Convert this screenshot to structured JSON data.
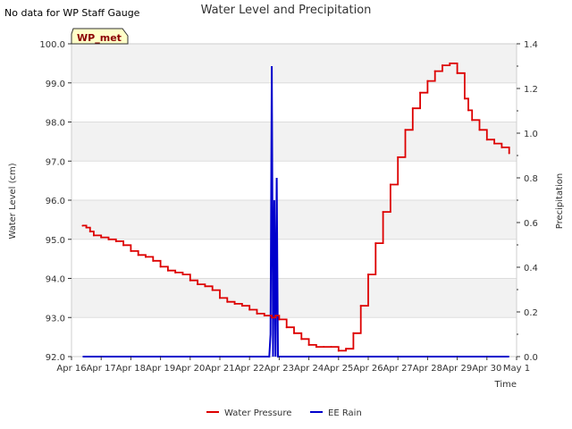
{
  "note": "No data for WP Staff Gauge",
  "chart_data": {
    "type": "line",
    "title": "Water Level and Precipitation",
    "xlabel": "Time",
    "ylabel": "Water Level (cm)",
    "y2label": "Precipitation",
    "ylim": [
      92.0,
      100.0
    ],
    "y2lim": [
      0.0,
      1.4
    ],
    "yticks": [
      "92.0",
      "93.0",
      "94.0",
      "95.0",
      "96.0",
      "97.0",
      "98.0",
      "99.0",
      "100.0"
    ],
    "y2ticks": [
      "0.0",
      "0.2",
      "0.4",
      "0.6",
      "0.8",
      "1.0",
      "1.2",
      "1.4"
    ],
    "xticks": [
      "Apr 16",
      "Apr 17",
      "Apr 18",
      "Apr 19",
      "Apr 20",
      "Apr 21",
      "Apr 22",
      "Apr 23",
      "Apr 24",
      "Apr 25",
      "Apr 26",
      "Apr 27",
      "Apr 28",
      "Apr 29",
      "Apr 30",
      "May 1"
    ],
    "xlim": [
      "2024-04-16",
      "2024-05-01"
    ],
    "grid": true,
    "legend_position": "bottom-center",
    "station_label": "WP_met",
    "series": [
      {
        "name": "Water Pressure",
        "color": "#dd0000",
        "axis": "left",
        "x": [
          "2024-04-16T09:00",
          "2024-04-16T12:00",
          "2024-04-16T15:00",
          "2024-04-16T18:00",
          "2024-04-17T00:00",
          "2024-04-17T06:00",
          "2024-04-17T12:00",
          "2024-04-17T18:00",
          "2024-04-18T00:00",
          "2024-04-18T06:00",
          "2024-04-18T12:00",
          "2024-04-18T18:00",
          "2024-04-19T00:00",
          "2024-04-19T06:00",
          "2024-04-19T12:00",
          "2024-04-19T18:00",
          "2024-04-20T00:00",
          "2024-04-20T06:00",
          "2024-04-20T12:00",
          "2024-04-20T18:00",
          "2024-04-21T00:00",
          "2024-04-21T06:00",
          "2024-04-21T12:00",
          "2024-04-21T18:00",
          "2024-04-22T00:00",
          "2024-04-22T06:00",
          "2024-04-22T12:00",
          "2024-04-22T18:00",
          "2024-04-22T21:00",
          "2024-04-23T00:00",
          "2024-04-23T06:00",
          "2024-04-23T12:00",
          "2024-04-23T18:00",
          "2024-04-24T00:00",
          "2024-04-24T06:00",
          "2024-04-24T12:00",
          "2024-04-24T18:00",
          "2024-04-25T00:00",
          "2024-04-25T06:00",
          "2024-04-25T12:00",
          "2024-04-25T18:00",
          "2024-04-26T00:00",
          "2024-04-26T06:00",
          "2024-04-26T12:00",
          "2024-04-26T18:00",
          "2024-04-27T00:00",
          "2024-04-27T06:00",
          "2024-04-27T12:00",
          "2024-04-27T18:00",
          "2024-04-28T00:00",
          "2024-04-28T06:00",
          "2024-04-28T12:00",
          "2024-04-28T18:00",
          "2024-04-28T22:00",
          "2024-04-29T00:00",
          "2024-04-29T06:00",
          "2024-04-29T09:00",
          "2024-04-29T12:00",
          "2024-04-29T18:00",
          "2024-04-30T00:00",
          "2024-04-30T06:00",
          "2024-04-30T12:00",
          "2024-04-30T18:00"
        ],
        "values": [
          95.35,
          95.3,
          95.2,
          95.1,
          95.05,
          95.0,
          94.95,
          94.85,
          94.7,
          94.6,
          94.55,
          94.45,
          94.3,
          94.2,
          94.15,
          94.1,
          93.95,
          93.85,
          93.8,
          93.7,
          93.5,
          93.4,
          93.35,
          93.3,
          93.2,
          93.1,
          93.05,
          93.0,
          93.05,
          92.95,
          92.75,
          92.6,
          92.45,
          92.3,
          92.25,
          92.25,
          92.25,
          92.15,
          92.2,
          92.6,
          93.3,
          94.1,
          94.9,
          95.7,
          96.4,
          97.1,
          97.8,
          98.35,
          98.75,
          99.05,
          99.3,
          99.45,
          99.5,
          99.5,
          99.25,
          98.6,
          98.3,
          98.05,
          97.8,
          97.55,
          97.45,
          97.35,
          97.2
        ]
      },
      {
        "name": "EE Rain",
        "color": "#0000cc",
        "axis": "right",
        "x": [
          "2024-04-16T09:00",
          "2024-04-22T16:00",
          "2024-04-22T17:00",
          "2024-04-22T18:00",
          "2024-04-22T19:00",
          "2024-04-22T20:00",
          "2024-04-22T21:00",
          "2024-04-22T22:00",
          "2024-04-22T23:00",
          "2024-04-23T00:00",
          "2024-04-23T01:00",
          "2024-04-30T18:00"
        ],
        "values": [
          0.0,
          0.0,
          0.1,
          1.3,
          0.0,
          0.7,
          0.0,
          0.8,
          0.0,
          0.0,
          0.0,
          0.0
        ]
      }
    ]
  }
}
